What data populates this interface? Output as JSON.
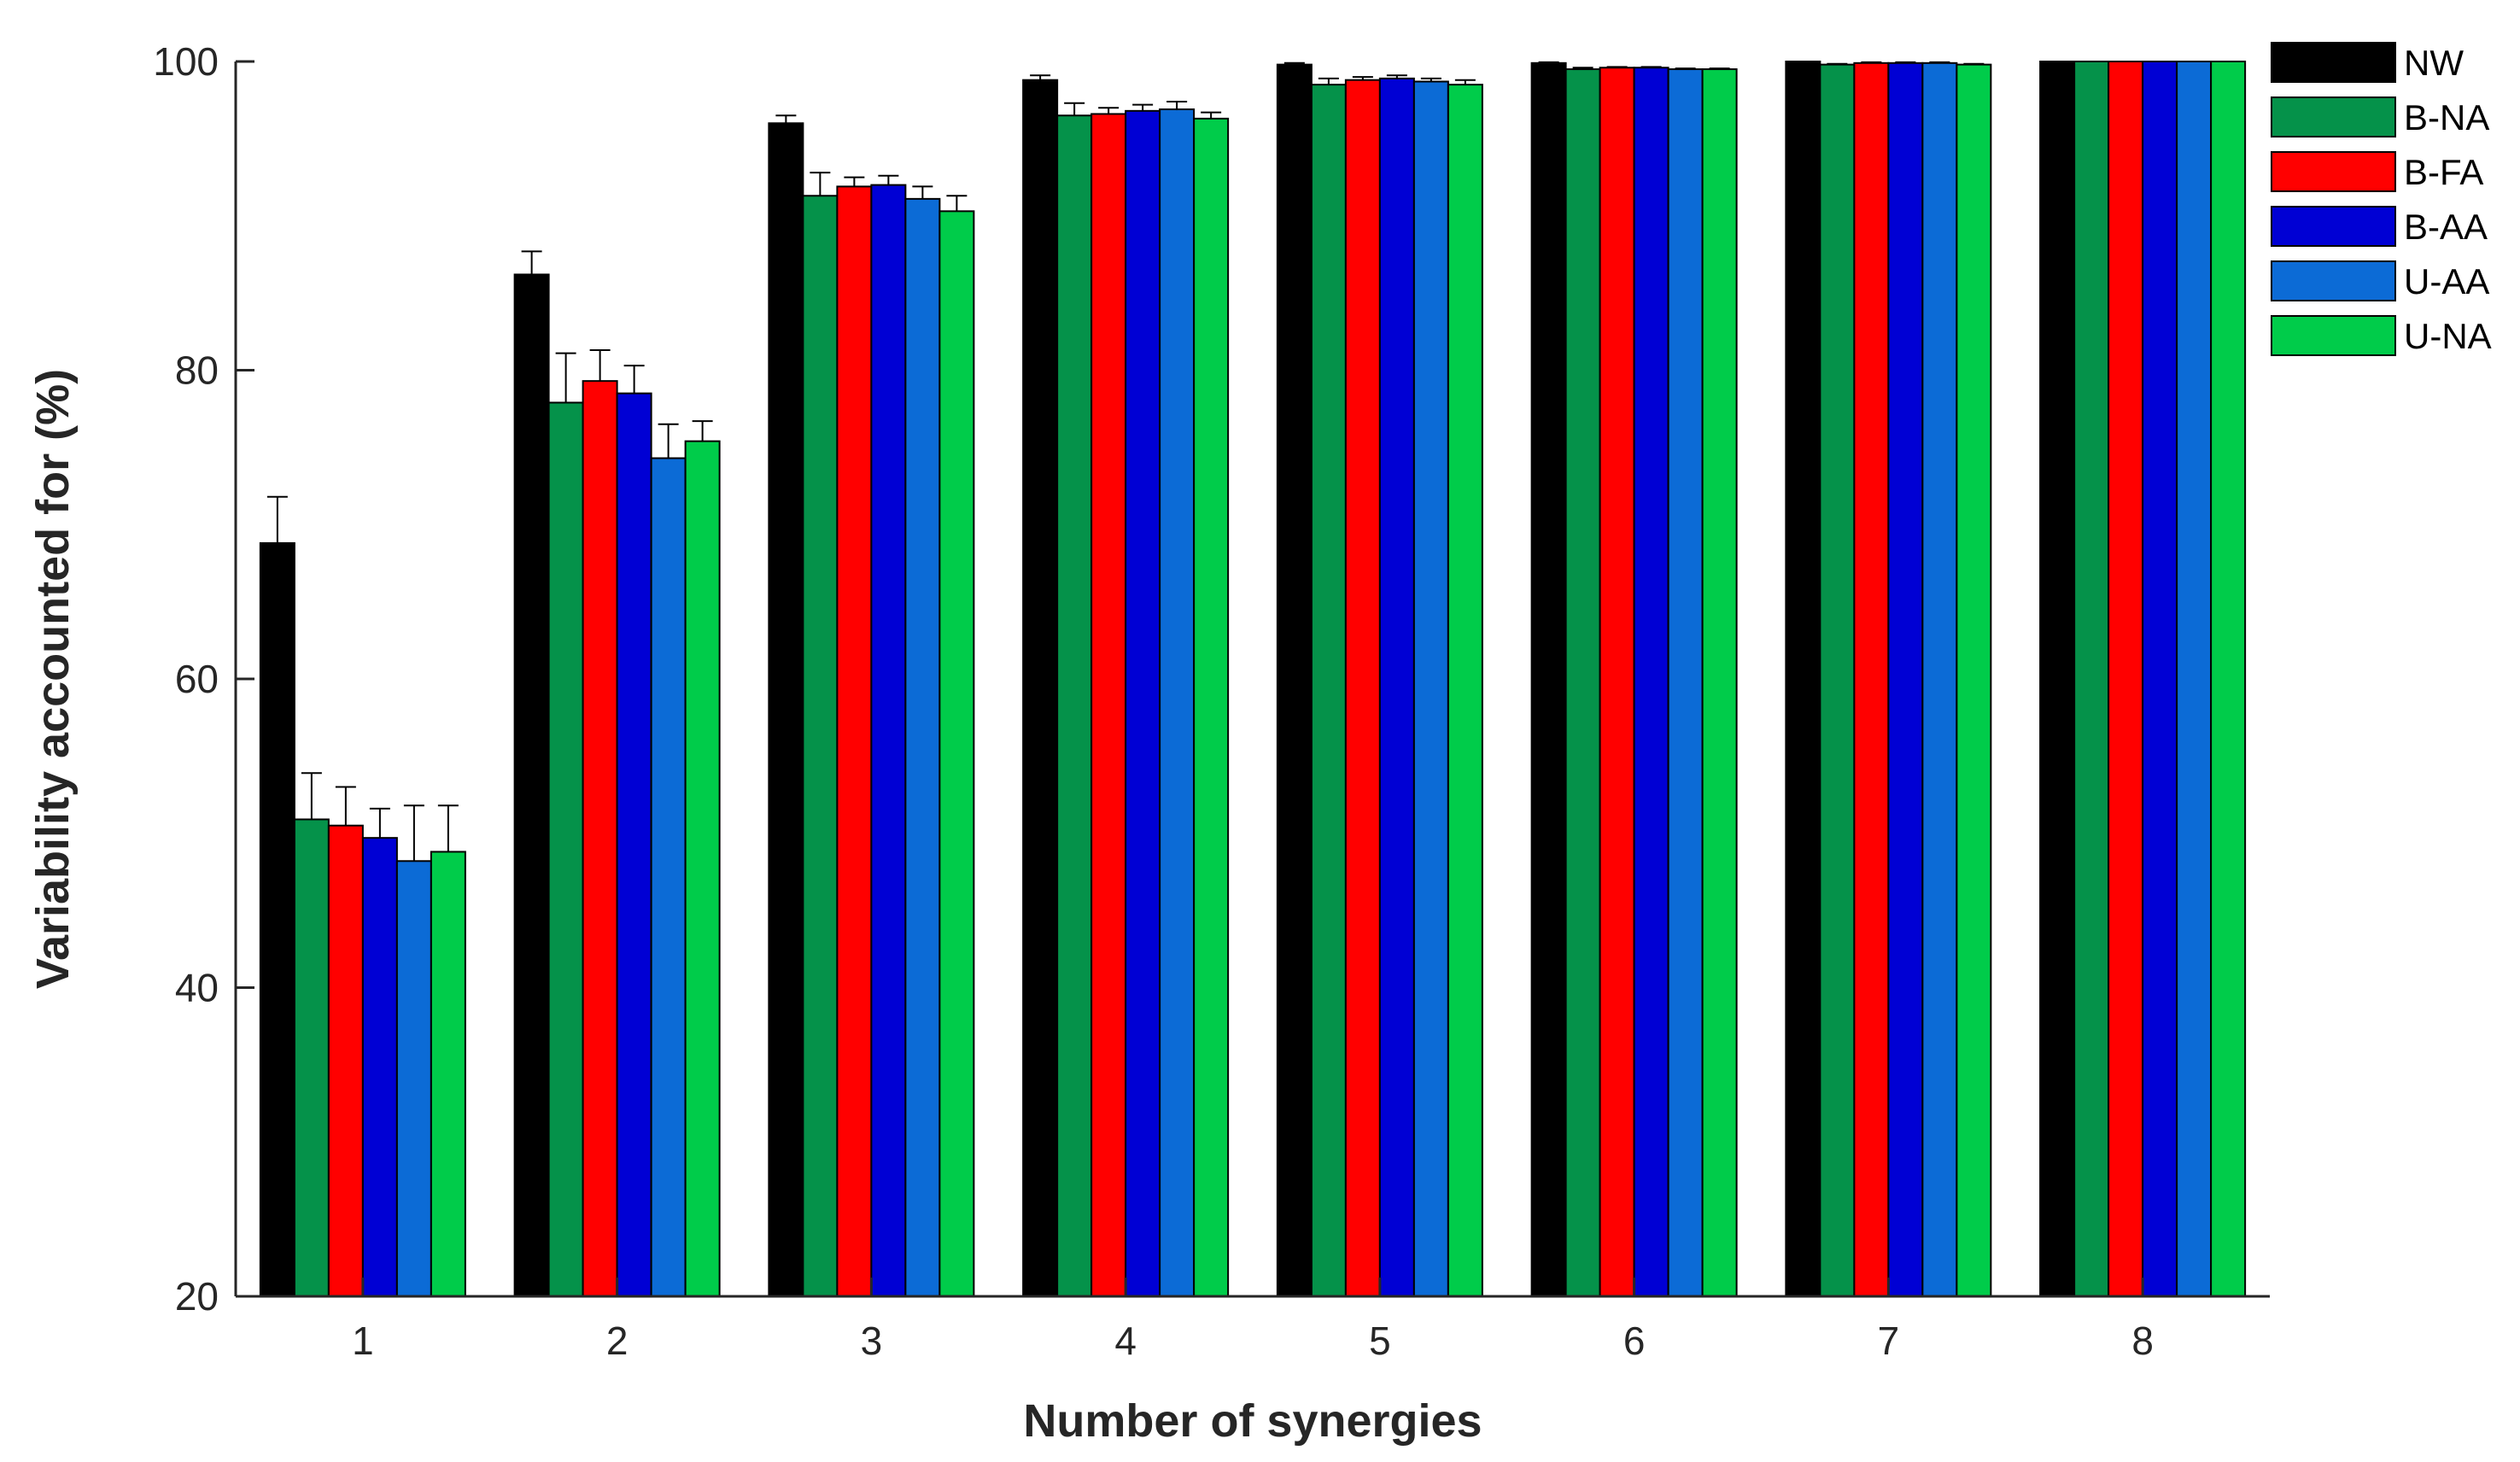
{
  "chart_data": {
    "type": "bar",
    "title": "",
    "xlabel": "Number of synergies",
    "ylabel": "Variability accounted for (%)",
    "ylim": [
      20,
      100
    ],
    "yticks": [
      20,
      40,
      60,
      80,
      100
    ],
    "categories": [
      "1",
      "2",
      "3",
      "4",
      "5",
      "6",
      "7",
      "8"
    ],
    "legend_position": "top-right outside",
    "error_bars": "upper only",
    "series": [
      {
        "name": "NW",
        "color": "#000000",
        "values": [
          68.8,
          86.2,
          96.0,
          98.8,
          99.8,
          99.9,
          100.0,
          100.0
        ],
        "errors": [
          3.0,
          1.5,
          0.5,
          0.3,
          0.1,
          0.05,
          0.0,
          0.0
        ]
      },
      {
        "name": "B-NA",
        "color": "#05924a",
        "values": [
          50.9,
          77.9,
          91.3,
          96.5,
          98.5,
          99.5,
          99.8,
          100.0
        ],
        "errors": [
          3.0,
          3.2,
          1.5,
          0.8,
          0.4,
          0.1,
          0.05,
          0.0
        ]
      },
      {
        "name": "B-FA",
        "color": "#ff0000",
        "values": [
          50.5,
          79.3,
          91.9,
          96.6,
          98.8,
          99.6,
          99.9,
          100.0
        ],
        "errors": [
          2.5,
          2.0,
          0.6,
          0.4,
          0.2,
          0.05,
          0.05,
          0.0
        ]
      },
      {
        "name": "B-AA",
        "color": "#0000d4",
        "values": [
          49.7,
          78.5,
          92.0,
          96.8,
          98.9,
          99.6,
          99.9,
          100.0
        ],
        "errors": [
          1.9,
          1.8,
          0.6,
          0.4,
          0.2,
          0.05,
          0.05,
          0.0
        ]
      },
      {
        "name": "U-AA",
        "color": "#0c6bd6",
        "values": [
          48.2,
          74.3,
          91.1,
          96.9,
          98.7,
          99.5,
          99.9,
          100.0
        ],
        "errors": [
          3.6,
          2.2,
          0.8,
          0.5,
          0.2,
          0.05,
          0.05,
          0.0
        ]
      },
      {
        "name": "U-NA",
        "color": "#00cc4a",
        "values": [
          48.8,
          75.4,
          90.3,
          96.3,
          98.5,
          99.5,
          99.8,
          100.0
        ],
        "errors": [
          3.0,
          1.3,
          1.0,
          0.4,
          0.3,
          0.05,
          0.05,
          0.0
        ]
      }
    ]
  }
}
